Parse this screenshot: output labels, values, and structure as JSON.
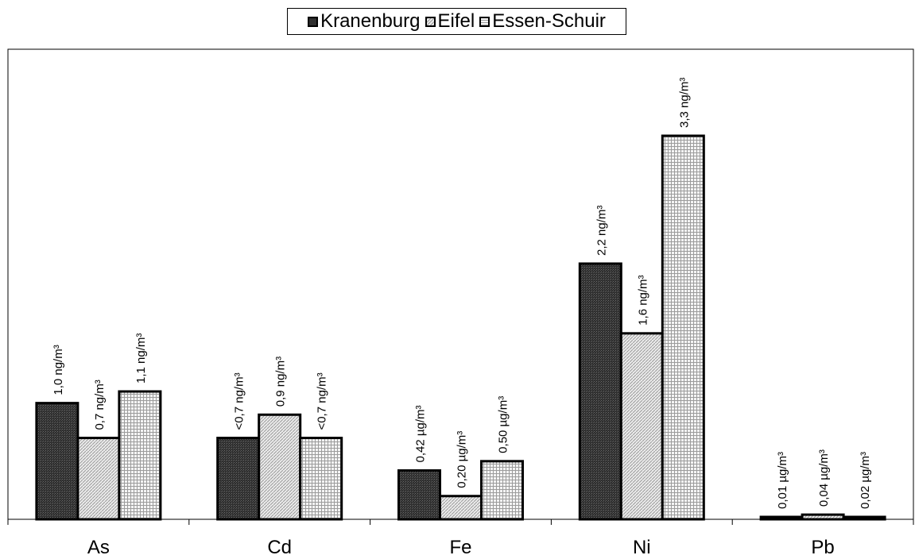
{
  "chart_data": {
    "type": "bar",
    "title": "",
    "xlabel": "",
    "ylabel": "",
    "legend_position": "top-center",
    "grid": false,
    "categories": [
      "As",
      "Cd",
      "Fe",
      "Ni",
      "Pb"
    ],
    "series": [
      {
        "name": "Kranenburg",
        "color": "#3d3d3d",
        "pattern": "dense-dark",
        "values": [
          1.0,
          0.7,
          0.42,
          2.2,
          0.01
        ],
        "labels": [
          "1,0 ng/m³",
          "<0,7 ng/m³",
          "0,42 µg/m³",
          "2,2 ng/m³",
          "0,01 µg/m³"
        ]
      },
      {
        "name": "Eifel",
        "color": "#d0d0d0",
        "pattern": "diagonal",
        "values": [
          0.7,
          0.9,
          0.2,
          1.6,
          0.04
        ],
        "labels": [
          "0,7 ng/m³",
          "0,9 ng/m³",
          "0,20 µg/m³",
          "1,6 ng/m³",
          "0,04 µg/m³"
        ]
      },
      {
        "name": "Essen-Schuir",
        "color": "#e2e2e2",
        "pattern": "grid",
        "values": [
          1.1,
          0.7,
          0.5,
          3.3,
          0.02
        ],
        "labels": [
          "1,1 ng/m³",
          "<0,7 ng/m³",
          "0,50 µg/m³",
          "3,3 ng/m³",
          "0,02 µg/m³"
        ]
      }
    ]
  }
}
